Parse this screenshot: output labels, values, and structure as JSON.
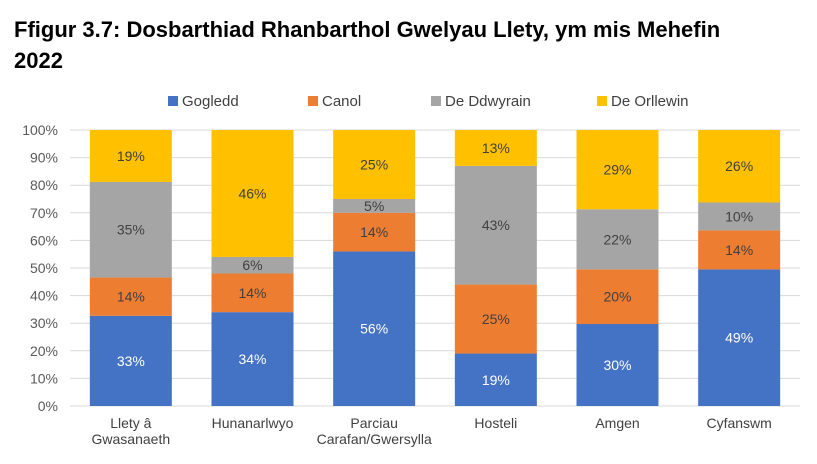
{
  "chart_data": {
    "type": "bar",
    "stacked": true,
    "title": "Ffigur 3.7: Dosbarthiad Rhanbarthol Gwelyau Llety, ym mis Mehefin 2022",
    "xlabel": "",
    "ylabel": "",
    "ylim": [
      0,
      100
    ],
    "yticks": [
      "0%",
      "10%",
      "20%",
      "30%",
      "40%",
      "50%",
      "60%",
      "70%",
      "80%",
      "90%",
      "100%"
    ],
    "grid": true,
    "legend_position": "top",
    "categories": [
      [
        "Llety â",
        "Gwasanaeth"
      ],
      [
        "Hunanarlwyo"
      ],
      [
        "Parciau",
        "Carafan/Gwersylla"
      ],
      [
        "Hosteli"
      ],
      [
        "Amgen"
      ],
      [
        "Cyfanswm"
      ]
    ],
    "series": [
      {
        "name": "Gogledd",
        "color": "#4472C4",
        "label_color": "#FFFFFF",
        "values": [
          33,
          34,
          56,
          19,
          30,
          49
        ]
      },
      {
        "name": "Canol",
        "color": "#ED7D31",
        "label_color": "#404040",
        "values": [
          14,
          14,
          14,
          25,
          20,
          14
        ]
      },
      {
        "name": "De Ddwyrain",
        "color": "#A5A5A5",
        "label_color": "#404040",
        "values": [
          35,
          6,
          5,
          43,
          22,
          10
        ]
      },
      {
        "name": "De Orllewin",
        "color": "#FFC000",
        "label_color": "#404040",
        "values": [
          19,
          46,
          25,
          13,
          29,
          26
        ]
      }
    ]
  }
}
